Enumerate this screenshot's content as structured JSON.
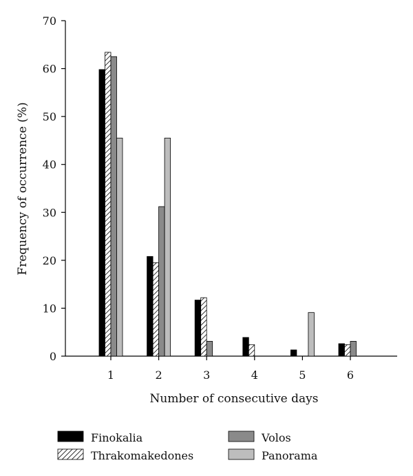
{
  "chart_data": {
    "type": "bar",
    "categories": [
      "1",
      "2",
      "3",
      "4",
      "5",
      "6"
    ],
    "series": [
      {
        "name": "Finokalia",
        "values": [
          59.8,
          20.8,
          11.7,
          3.9,
          1.3,
          2.6
        ],
        "fill": "#000000"
      },
      {
        "name": "Thrakomakedones",
        "values": [
          63.4,
          19.5,
          12.2,
          2.4,
          0,
          2.4
        ],
        "fill": "hatch"
      },
      {
        "name": "Volos",
        "values": [
          62.5,
          31.2,
          3.1,
          0,
          0,
          3.1
        ],
        "fill": "#8a8a8a"
      },
      {
        "name": "Panorama",
        "values": [
          45.5,
          45.5,
          0,
          0,
          9.1,
          0
        ],
        "fill": "#bdbdbd"
      }
    ],
    "xlabel": "Number of consecutive days",
    "ylabel": "Frequency of occurrence (%)",
    "ylim": [
      0,
      70
    ],
    "yticks": [
      0,
      10,
      20,
      30,
      40,
      50,
      60,
      70
    ],
    "grid": false,
    "legend_position": "bottom"
  }
}
